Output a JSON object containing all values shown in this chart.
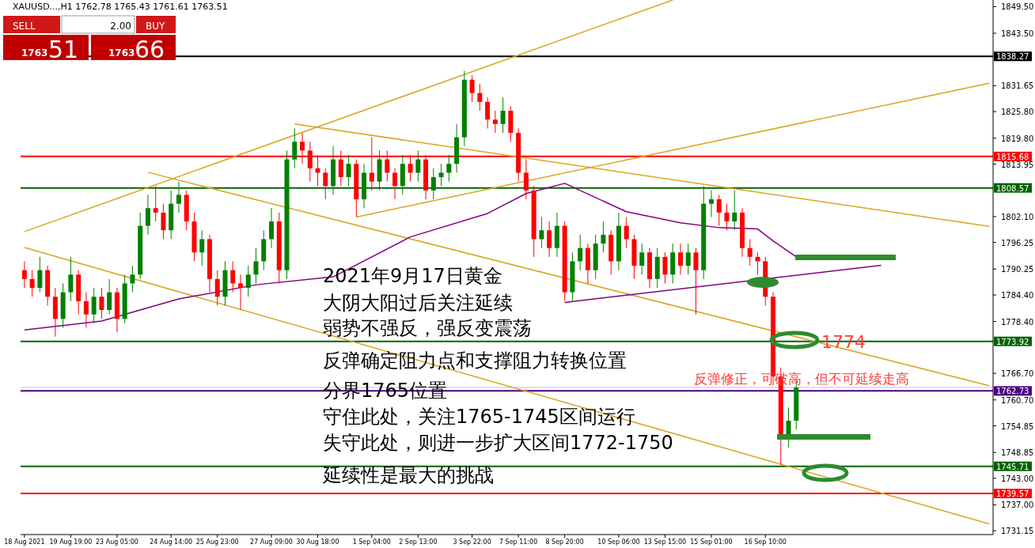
{
  "chart_data": {
    "type": "candlestick",
    "categories": [
      "18 Aug 2021",
      null,
      null,
      null,
      null,
      null,
      "19 Aug 19:00",
      null,
      null,
      null,
      null,
      null,
      "23 Aug 05:00",
      null,
      null,
      null,
      null,
      null,
      null,
      "24 Aug 14:00",
      null,
      null,
      null,
      null,
      null,
      "25 Aug 23:00",
      null,
      null,
      null,
      null,
      null,
      null,
      "27 Aug 09:00",
      null,
      null,
      null,
      null,
      null,
      "30 Aug 18:00",
      null,
      null,
      null,
      null,
      null,
      null,
      "1 Sep 04:00",
      null,
      null,
      null,
      null,
      null,
      "2 Sep 13:00",
      null,
      null,
      null,
      null,
      null,
      null,
      "3 Sep 22:00",
      null,
      null,
      null,
      null,
      null,
      "7 Sep 11:00",
      null,
      null,
      null,
      null,
      null,
      "8 Sep 20:00",
      null,
      null,
      null,
      null,
      null,
      null,
      "10 Sep 06:00",
      null,
      null,
      null,
      null,
      null,
      "13 Sep 15:00",
      null,
      null,
      null,
      null,
      null,
      "15 Sep 01:00",
      null,
      null,
      null,
      null,
      null,
      null,
      "16 Sep 10:00",
      null,
      null,
      null,
      null,
      null,
      null,
      null,
      null,
      null,
      null,
      null,
      null,
      null,
      null,
      null,
      null,
      null,
      null,
      null,
      null,
      null,
      null,
      null,
      null,
      null,
      null,
      null,
      null,
      null
    ],
    "ohlc": [
      [
        1790,
        1792,
        1786,
        1788
      ],
      [
        1788,
        1790,
        1784,
        1786
      ],
      [
        1786,
        1793,
        1785,
        1790
      ],
      [
        1790,
        1791,
        1782,
        1784
      ],
      [
        1784,
        1786,
        1775,
        1779
      ],
      [
        1779,
        1787,
        1777,
        1785
      ],
      [
        1785,
        1793,
        1783,
        1789
      ],
      [
        1789,
        1790,
        1780,
        1783
      ],
      [
        1783,
        1785,
        1777,
        1780
      ],
      [
        1780,
        1786,
        1778,
        1784
      ],
      [
        1784,
        1786,
        1779,
        1781
      ],
      [
        1781,
        1788,
        1780,
        1785
      ],
      [
        1785,
        1786,
        1776,
        1779
      ],
      [
        1779,
        1789,
        1778,
        1787
      ],
      [
        1787,
        1791,
        1785,
        1789
      ],
      [
        1789,
        1803,
        1788,
        1800
      ],
      [
        1800,
        1807,
        1798,
        1804
      ],
      [
        1804,
        1809,
        1801,
        1803
      ],
      [
        1803,
        1805,
        1797,
        1799
      ],
      [
        1799,
        1808,
        1797,
        1805
      ],
      [
        1805,
        1810,
        1803,
        1807
      ],
      [
        1807,
        1808,
        1799,
        1801
      ],
      [
        1801,
        1803,
        1792,
        1794
      ],
      [
        1794,
        1799,
        1791,
        1797
      ],
      [
        1797,
        1798,
        1785,
        1788
      ],
      [
        1788,
        1790,
        1782,
        1784
      ],
      [
        1784,
        1792,
        1782,
        1790
      ],
      [
        1790,
        1792,
        1785,
        1787
      ],
      [
        1787,
        1789,
        1781,
        1786
      ],
      [
        1786,
        1791,
        1784,
        1789
      ],
      [
        1789,
        1795,
        1787,
        1792
      ],
      [
        1792,
        1799,
        1790,
        1797
      ],
      [
        1797,
        1804,
        1795,
        1801
      ],
      [
        1801,
        1803,
        1787,
        1790
      ],
      [
        1790,
        1817,
        1788,
        1815
      ],
      [
        1815,
        1822,
        1813,
        1819
      ],
      [
        1819,
        1821,
        1814,
        1817
      ],
      [
        1817,
        1819,
        1810,
        1813
      ],
      [
        1813,
        1816,
        1809,
        1812
      ],
      [
        1812,
        1813,
        1806,
        1809
      ],
      [
        1809,
        1818,
        1807,
        1815
      ],
      [
        1815,
        1817,
        1809,
        1811
      ],
      [
        1811,
        1816,
        1809,
        1814
      ],
      [
        1814,
        1815,
        1802,
        1806
      ],
      [
        1806,
        1814,
        1804,
        1812
      ],
      [
        1812,
        1820,
        1808,
        1810
      ],
      [
        1810,
        1817,
        1808,
        1815
      ],
      [
        1815,
        1817,
        1810,
        1812
      ],
      [
        1812,
        1813,
        1806,
        1809
      ],
      [
        1809,
        1816,
        1807,
        1814
      ],
      [
        1814,
        1816,
        1810,
        1812
      ],
      [
        1812,
        1817,
        1810,
        1815
      ],
      [
        1815,
        1816,
        1806,
        1808
      ],
      [
        1808,
        1813,
        1806,
        1811
      ],
      [
        1811,
        1814,
        1809,
        1812
      ],
      [
        1812,
        1816,
        1810,
        1814
      ],
      [
        1814,
        1823,
        1812,
        1820
      ],
      [
        1820,
        1835,
        1818,
        1833
      ],
      [
        1833,
        1834,
        1828,
        1830
      ],
      [
        1830,
        1832,
        1826,
        1828
      ],
      [
        1828,
        1829,
        1822,
        1824
      ],
      [
        1824,
        1826,
        1821,
        1823
      ],
      [
        1823,
        1829,
        1821,
        1826
      ],
      [
        1826,
        1827,
        1819,
        1821
      ],
      [
        1821,
        1822,
        1810,
        1812
      ],
      [
        1812,
        1815,
        1806,
        1808
      ],
      [
        1808,
        1809,
        1793,
        1797
      ],
      [
        1797,
        1802,
        1795,
        1799
      ],
      [
        1799,
        1801,
        1793,
        1795
      ],
      [
        1795,
        1803,
        1793,
        1800
      ],
      [
        1800,
        1801,
        1783,
        1785
      ],
      [
        1785,
        1794,
        1783,
        1792
      ],
      [
        1792,
        1798,
        1790,
        1795
      ],
      [
        1795,
        1796,
        1787,
        1790
      ],
      [
        1790,
        1798,
        1788,
        1796
      ],
      [
        1796,
        1801,
        1794,
        1798
      ],
      [
        1798,
        1799,
        1789,
        1792
      ],
      [
        1792,
        1803,
        1790,
        1800
      ],
      [
        1800,
        1802,
        1795,
        1797
      ],
      [
        1797,
        1798,
        1788,
        1791
      ],
      [
        1791,
        1796,
        1789,
        1794
      ],
      [
        1794,
        1795,
        1786,
        1788
      ],
      [
        1788,
        1795,
        1786,
        1793
      ],
      [
        1793,
        1794,
        1787,
        1789
      ],
      [
        1789,
        1796,
        1787,
        1794
      ],
      [
        1794,
        1796,
        1789,
        1791
      ],
      [
        1791,
        1796,
        1789,
        1794
      ],
      [
        1794,
        1795,
        1780,
        1790
      ],
      [
        1790,
        1809,
        1788,
        1805
      ],
      [
        1805,
        1808,
        1802,
        1806
      ],
      [
        1806,
        1807,
        1800,
        1803
      ],
      [
        1803,
        1805,
        1799,
        1801
      ],
      [
        1801,
        1808,
        1799,
        1803
      ],
      [
        1803,
        1804,
        1793,
        1795
      ],
      [
        1795,
        1797,
        1791,
        1793
      ],
      [
        1793,
        1794,
        1789,
        1792
      ],
      [
        1792,
        1793,
        1782,
        1784
      ],
      [
        1784,
        1785,
        1764,
        1766
      ],
      [
        1766,
        1768,
        1746,
        1752
      ],
      [
        1752,
        1759,
        1750,
        1756
      ],
      [
        1756,
        1765.4,
        1754,
        1763.5
      ],
      null,
      null,
      null,
      null,
      null,
      null,
      null,
      null,
      null,
      null,
      null,
      null,
      null,
      null,
      null,
      null,
      null,
      null,
      null,
      null,
      null,
      null,
      null,
      null,
      null
    ],
    "series": [
      {
        "type": "line",
        "color": "#daa520",
        "values": [
          1798.7,
          null,
          null,
          null,
          null,
          null,
          null,
          null,
          null,
          null,
          null,
          null,
          null,
          null,
          null,
          null,
          null,
          null,
          null,
          null,
          null,
          null,
          null,
          null,
          null,
          null,
          null,
          null,
          null,
          null,
          null,
          null,
          null,
          null,
          null,
          null,
          null,
          null,
          null,
          null,
          null,
          null,
          null,
          null,
          null,
          null,
          null,
          null,
          null,
          null,
          null,
          null,
          null,
          null,
          null,
          null,
          null,
          null,
          null,
          null,
          null,
          null,
          null,
          null,
          null,
          null,
          null,
          null,
          null,
          null,
          null,
          null,
          null,
          null,
          null,
          null,
          null,
          null,
          null,
          null,
          null,
          null,
          null,
          null,
          1851.0,
          null,
          null,
          null,
          null,
          null,
          null,
          null,
          null,
          null,
          null,
          null,
          null,
          null,
          null,
          null,
          null,
          null,
          null,
          null,
          null,
          null,
          null,
          null,
          null,
          null,
          null,
          null,
          null,
          null,
          null,
          null,
          null,
          null,
          null,
          null,
          null,
          null,
          null,
          null,
          null,
          null
        ]
      },
      {
        "type": "line",
        "color": "#daa520",
        "values": [
          1795.1,
          null,
          null,
          null,
          null,
          null,
          null,
          null,
          null,
          null,
          null,
          null,
          null,
          null,
          null,
          null,
          null,
          null,
          null,
          null,
          null,
          null,
          null,
          null,
          null,
          null,
          null,
          null,
          null,
          null,
          null,
          null,
          null,
          null,
          null,
          null,
          null,
          null,
          null,
          null,
          null,
          null,
          null,
          null,
          null,
          null,
          null,
          null,
          null,
          null,
          null,
          null,
          null,
          null,
          null,
          null,
          null,
          null,
          null,
          null,
          null,
          null,
          null,
          null,
          null,
          null,
          null,
          null,
          null,
          null,
          null,
          null,
          null,
          null,
          null,
          null,
          null,
          null,
          null,
          null,
          null,
          null,
          null,
          null,
          null,
          null,
          null,
          null,
          null,
          null,
          null,
          null,
          null,
          null,
          null,
          null,
          null,
          null,
          null,
          null,
          null,
          null,
          null,
          null,
          null,
          null,
          null,
          null,
          null,
          null,
          null,
          null,
          null,
          null,
          null,
          null,
          null,
          null,
          null,
          null,
          null,
          null,
          null,
          null,
          null,
          1732.7
        ]
      },
      {
        "type": "line",
        "color": "#daa520",
        "values": [
          null,
          null,
          null,
          null,
          null,
          null,
          null,
          null,
          null,
          null,
          null,
          null,
          null,
          null,
          null,
          null,
          1812.1,
          null,
          null,
          null,
          null,
          null,
          null,
          null,
          null,
          null,
          null,
          null,
          null,
          null,
          null,
          null,
          null,
          null,
          null,
          null,
          null,
          null,
          null,
          null,
          null,
          null,
          null,
          null,
          null,
          null,
          null,
          null,
          null,
          null,
          null,
          null,
          null,
          null,
          null,
          null,
          null,
          null,
          null,
          null,
          null,
          null,
          null,
          null,
          null,
          null,
          null,
          null,
          null,
          null,
          null,
          null,
          null,
          null,
          null,
          null,
          null,
          null,
          null,
          null,
          null,
          null,
          null,
          null,
          null,
          null,
          null,
          null,
          null,
          null,
          null,
          null,
          null,
          null,
          null,
          null,
          null,
          null,
          null,
          null,
          null,
          null,
          null,
          null,
          null,
          null,
          null,
          null,
          null,
          null,
          null,
          null,
          null,
          null,
          null,
          null,
          null,
          null,
          null,
          null,
          null,
          null,
          null,
          null,
          null,
          1763.9
        ]
      },
      {
        "type": "line",
        "color": "#daa520",
        "values": [
          null,
          null,
          null,
          null,
          null,
          null,
          null,
          null,
          null,
          null,
          null,
          null,
          null,
          null,
          null,
          null,
          null,
          null,
          null,
          null,
          null,
          null,
          null,
          null,
          null,
          null,
          null,
          null,
          null,
          null,
          null,
          null,
          null,
          null,
          null,
          1823.0,
          null,
          null,
          null,
          null,
          null,
          null,
          null,
          null,
          null,
          null,
          null,
          null,
          null,
          null,
          null,
          null,
          null,
          null,
          null,
          null,
          null,
          null,
          null,
          null,
          null,
          null,
          null,
          null,
          null,
          null,
          null,
          null,
          null,
          null,
          null,
          null,
          null,
          null,
          null,
          null,
          null,
          null,
          null,
          null,
          null,
          null,
          null,
          null,
          null,
          null,
          null,
          null,
          null,
          null,
          null,
          null,
          null,
          null,
          null,
          null,
          null,
          null,
          null,
          null,
          null,
          null,
          null,
          null,
          null,
          null,
          null,
          null,
          null,
          null,
          null,
          null,
          null,
          null,
          null,
          null,
          null,
          null,
          null,
          null,
          null,
          null,
          null,
          null,
          null,
          1799.9
        ]
      },
      {
        "type": "line",
        "color": "#daa520",
        "values": [
          null,
          null,
          null,
          null,
          null,
          null,
          null,
          null,
          null,
          null,
          null,
          null,
          null,
          null,
          null,
          null,
          null,
          null,
          null,
          null,
          null,
          null,
          null,
          null,
          null,
          null,
          null,
          null,
          null,
          null,
          null,
          null,
          null,
          null,
          null,
          null,
          null,
          null,
          null,
          null,
          null,
          null,
          null,
          1802.0,
          null,
          null,
          null,
          null,
          null,
          null,
          null,
          null,
          null,
          null,
          null,
          null,
          null,
          null,
          null,
          null,
          null,
          null,
          null,
          null,
          null,
          null,
          null,
          null,
          null,
          null,
          null,
          null,
          null,
          null,
          null,
          null,
          null,
          null,
          null,
          null,
          null,
          null,
          null,
          null,
          null,
          null,
          null,
          null,
          null,
          null,
          null,
          null,
          null,
          null,
          null,
          null,
          null,
          null,
          null,
          null,
          null,
          null,
          null,
          null,
          null,
          null,
          null,
          null,
          null,
          null,
          null,
          null,
          null,
          null,
          null,
          null,
          null,
          null,
          null,
          null,
          null,
          null,
          null,
          null,
          null,
          1832.2
        ]
      },
      {
        "type": "line",
        "color": "#800080",
        "values": [
          null,
          null,
          null,
          null,
          null,
          null,
          null,
          null,
          null,
          null,
          null,
          null,
          null,
          null,
          null,
          null,
          null,
          null,
          null,
          null,
          null,
          null,
          null,
          null,
          null,
          null,
          null,
          null,
          null,
          null,
          null,
          null,
          null,
          null,
          null,
          null,
          null,
          null,
          null,
          null,
          null,
          null,
          null,
          null,
          null,
          null,
          null,
          null,
          null,
          null,
          null,
          null,
          null,
          null,
          null,
          null,
          null,
          null,
          null,
          null,
          null,
          null,
          null,
          null,
          null,
          null,
          null,
          null,
          null,
          null,
          1782.7,
          null,
          null,
          null,
          null,
          null,
          null,
          null,
          null,
          null,
          null,
          null,
          null,
          null,
          null,
          null,
          null,
          null,
          null,
          null,
          null,
          null,
          null,
          null,
          null,
          null,
          null,
          null,
          null,
          null,
          null,
          null,
          null,
          null,
          null,
          null,
          null,
          null,
          null,
          null,
          null,
          1791.1,
          null,
          null,
          null,
          null,
          null,
          null,
          null,
          null,
          null,
          null,
          null,
          null,
          null,
          null
        ]
      },
      {
        "type": "line",
        "color": "#800080",
        "values": [
          1776.5,
          null,
          null,
          null,
          null,
          null,
          null,
          null,
          null,
          null,
          1778.5,
          null,
          null,
          null,
          null,
          null,
          null,
          null,
          null,
          null,
          1783.5,
          null,
          null,
          null,
          null,
          null,
          null,
          null,
          null,
          null,
          1786.7,
          null,
          null,
          null,
          null,
          null,
          null,
          null,
          null,
          null,
          1788.5,
          null,
          null,
          null,
          null,
          null,
          null,
          null,
          null,
          null,
          1797.5,
          null,
          null,
          null,
          null,
          null,
          null,
          null,
          null,
          null,
          1802.8,
          null,
          null,
          null,
          null,
          1807.3,
          null,
          null,
          null,
          null,
          1809.6,
          null,
          null,
          null,
          null,
          null,
          null,
          null,
          1803.2,
          null,
          null,
          null,
          null,
          null,
          null,
          1800.7,
          null,
          null,
          null,
          null,
          1799.6,
          null,
          null,
          null,
          null,
          1799.3,
          null,
          1796.6,
          null,
          null,
          1793.0,
          null,
          null,
          null,
          null,
          null,
          null,
          null,
          null,
          null,
          null,
          null,
          null,
          null,
          null,
          null,
          null,
          null,
          null,
          null,
          null,
          null,
          null,
          null,
          null,
          null
        ]
      }
    ],
    "ref_lines": [
      {
        "axis": "y",
        "value": 1838.27,
        "label": "1838.27",
        "color": "#000000"
      },
      {
        "axis": "y",
        "value": 1815.68,
        "label": "1815.68",
        "color": "#ff0000"
      },
      {
        "axis": "y",
        "value": 1808.57,
        "label": "1808.57",
        "color": "#006400"
      },
      {
        "axis": "y",
        "value": 1773.92,
        "label": "1773.92",
        "color": "#006400"
      },
      {
        "axis": "y",
        "value": 1763.51,
        "label": null,
        "color": "#c0c0c0"
      },
      {
        "axis": "y",
        "value": 1762.73,
        "label": "1762.73",
        "color": "#4b0082"
      },
      {
        "axis": "y",
        "value": 1745.71,
        "label": "1745.71",
        "color": "#006400"
      },
      {
        "axis": "y",
        "value": 1739.57,
        "label": "1739.57",
        "color": "#ff0000"
      }
    ],
    "ylim": [
      1730.3,
      1851.0
    ],
    "yticks": [
      {
        "value": 1849.5,
        "label": "1849.50"
      },
      {
        "value": 1843.5,
        "label": "1843.50"
      },
      {
        "value": 1831.65,
        "label": "1831.65"
      },
      {
        "value": 1825.8,
        "label": "1825.80"
      },
      {
        "value": 1819.8,
        "label": "1819.80"
      },
      {
        "value": 1813.95,
        "label": "1813.95"
      },
      {
        "value": 1802.1,
        "label": "1802.10"
      },
      {
        "value": 1796.25,
        "label": "1796.25"
      },
      {
        "value": 1790.25,
        "label": "1790.25"
      },
      {
        "value": 1784.4,
        "label": "1784.40"
      },
      {
        "value": 1778.4,
        "label": "1778.40"
      },
      {
        "value": 1766.7,
        "label": "1766.70"
      },
      {
        "value": 1760.7,
        "label": "1760.70"
      },
      {
        "value": 1754.85,
        "label": "1754.85"
      },
      {
        "value": 1748.85,
        "label": "1748.85"
      },
      {
        "value": 1743.0,
        "label": "1743.00"
      },
      {
        "value": 1737.0,
        "label": "1737.00"
      },
      {
        "value": 1731.15,
        "label": "1731.15"
      }
    ],
    "annotations": [
      "XAUUSD...,H1  1762.78 1765.43 1761.61 1763.51",
      "SELL",
      "2.00",
      "BUY",
      "1763",
      "51",
      "1763",
      "66",
      "2021年9月17日黄金",
      "大阴大阳过后关注延续",
      "弱势不强反，强反变震荡",
      "反弹确定阻力点和支撑阻力转换位置",
      "分界1765位置",
      "守住此处，关注1765-1745区间运行",
      "失守此处，则进一步扩大区间1772-1750",
      "延续性是最大的挑战",
      {
        "text": "1774",
        "y": 1773.9
      },
      "反弹修正，可破高，但不可延续走高"
    ]
  }
}
